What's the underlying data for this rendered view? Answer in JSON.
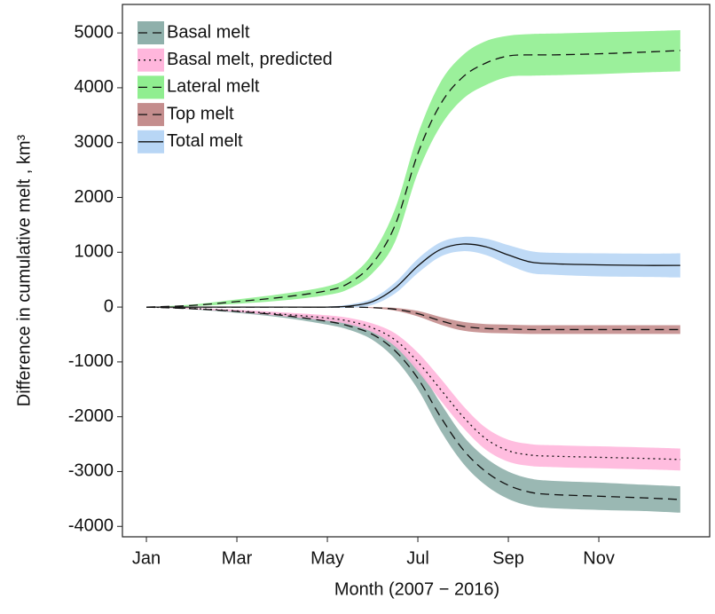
{
  "chart_data": {
    "type": "line",
    "xlabel": "Month (2007 − 2016)",
    "ylabel": "Difference in cumulative melt , km³",
    "x": [
      1,
      2,
      3,
      4,
      5,
      5.5,
      6,
      6.5,
      7,
      7.5,
      8,
      8.5,
      9,
      9.5,
      10,
      11,
      12,
      12.8
    ],
    "xlim": [
      0.47,
      13.45
    ],
    "xticks": [
      {
        "value": 1,
        "label": "Jan"
      },
      {
        "value": 3,
        "label": "Mar"
      },
      {
        "value": 5,
        "label": "May"
      },
      {
        "value": 7,
        "label": "Jul"
      },
      {
        "value": 9,
        "label": "Sep"
      },
      {
        "value": 11,
        "label": "Nov"
      }
    ],
    "ylim": [
      -4190,
      5520
    ],
    "yticks": [
      -4000,
      -3000,
      -2000,
      -1000,
      0,
      1000,
      2000,
      3000,
      4000,
      5000
    ],
    "series": [
      {
        "name": "Basal melt",
        "color": "#8fb0ab",
        "dash": "dashed",
        "values": [
          0,
          -30,
          -80,
          -150,
          -260,
          -350,
          -500,
          -800,
          -1300,
          -2000,
          -2600,
          -3000,
          -3250,
          -3380,
          -3420,
          -3450,
          -3480,
          -3510
        ],
        "upper": [
          0,
          -20,
          -55,
          -110,
          -200,
          -280,
          -400,
          -650,
          -1100,
          -1750,
          -2350,
          -2750,
          -3000,
          -3130,
          -3170,
          -3200,
          -3240,
          -3270
        ],
        "lower": [
          0,
          -40,
          -105,
          -190,
          -320,
          -420,
          -600,
          -950,
          -1500,
          -2250,
          -2850,
          -3250,
          -3500,
          -3630,
          -3670,
          -3700,
          -3720,
          -3750
        ]
      },
      {
        "name": "Basal melt, predicted",
        "color": "#ffb6dc",
        "dash": "dotted",
        "values": [
          0,
          -25,
          -70,
          -130,
          -200,
          -260,
          -380,
          -600,
          -1000,
          -1500,
          -2000,
          -2400,
          -2620,
          -2700,
          -2720,
          -2740,
          -2760,
          -2780
        ],
        "upper": [
          0,
          -15,
          -50,
          -95,
          -150,
          -200,
          -300,
          -480,
          -830,
          -1300,
          -1800,
          -2200,
          -2420,
          -2500,
          -2520,
          -2540,
          -2560,
          -2580
        ],
        "lower": [
          0,
          -35,
          -90,
          -165,
          -250,
          -320,
          -460,
          -720,
          -1170,
          -1700,
          -2200,
          -2600,
          -2820,
          -2900,
          -2920,
          -2940,
          -2960,
          -2980
        ]
      },
      {
        "name": "Lateral melt",
        "color": "#90ee90",
        "dash": "dashed",
        "values": [
          0,
          30,
          100,
          180,
          300,
          450,
          800,
          1500,
          2800,
          3700,
          4200,
          4450,
          4580,
          4600,
          4600,
          4620,
          4650,
          4680
        ],
        "upper": [
          0,
          45,
          140,
          240,
          380,
          560,
          980,
          1800,
          3150,
          4100,
          4600,
          4850,
          4950,
          4980,
          4990,
          5010,
          5030,
          5050
        ],
        "lower": [
          0,
          15,
          60,
          120,
          220,
          340,
          620,
          1200,
          2450,
          3300,
          3800,
          4050,
          4200,
          4220,
          4230,
          4250,
          4280,
          4300
        ]
      },
      {
        "name": "Top melt",
        "color": "#c48d8d",
        "dash": "dashed",
        "values": [
          0,
          0,
          0,
          0,
          0,
          0,
          -10,
          -40,
          -120,
          -250,
          -350,
          -390,
          -400,
          -410,
          -410,
          -410,
          -410,
          -410
        ],
        "upper": [
          0,
          0,
          0,
          0,
          0,
          0,
          0,
          -15,
          -70,
          -180,
          -270,
          -310,
          -320,
          -330,
          -330,
          -330,
          -330,
          -330
        ],
        "lower": [
          0,
          0,
          0,
          0,
          0,
          0,
          -20,
          -65,
          -170,
          -320,
          -430,
          -470,
          -480,
          -490,
          -490,
          -490,
          -490,
          -490
        ]
      },
      {
        "name": "Total melt",
        "color": "#b8d6f5",
        "dash": "solid",
        "values": [
          0,
          0,
          0,
          0,
          0,
          20,
          100,
          350,
          750,
          1050,
          1150,
          1100,
          950,
          820,
          790,
          770,
          760,
          760
        ],
        "upper": [
          0,
          0,
          0,
          0,
          10,
          50,
          160,
          450,
          880,
          1180,
          1280,
          1250,
          1130,
          1020,
          990,
          980,
          975,
          980
        ],
        "lower": [
          0,
          0,
          0,
          0,
          -10,
          -10,
          40,
          250,
          620,
          920,
          1020,
          950,
          770,
          620,
          590,
          560,
          550,
          540
        ]
      }
    ],
    "legend": "top-left"
  }
}
